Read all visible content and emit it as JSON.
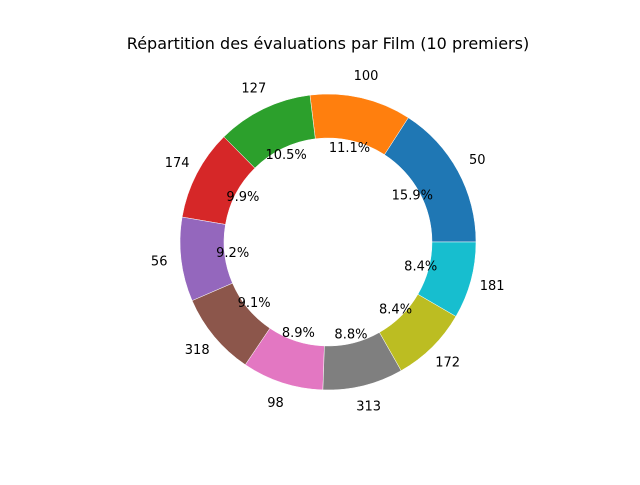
{
  "chart_data": {
    "type": "pie",
    "variant": "donut",
    "title": "Répartition des évaluations par Film (10 premiers)",
    "start_angle_deg": 0,
    "direction": "counterclockwise",
    "slices": [
      {
        "label": "50",
        "percent": 15.9,
        "pct_text": "15.9%",
        "color": "#1f77b4"
      },
      {
        "label": "100",
        "percent": 11.1,
        "pct_text": "11.1%",
        "color": "#ff7f0e"
      },
      {
        "label": "127",
        "percent": 10.5,
        "pct_text": "10.5%",
        "color": "#2ca02c"
      },
      {
        "label": "174",
        "percent": 9.9,
        "pct_text": "9.9%",
        "color": "#d62728"
      },
      {
        "label": "56",
        "percent": 9.2,
        "pct_text": "9.2%",
        "color": "#9467bd"
      },
      {
        "label": "318",
        "percent": 9.1,
        "pct_text": "9.1%",
        "color": "#8c564b"
      },
      {
        "label": "98",
        "percent": 8.9,
        "pct_text": "8.9%",
        "color": "#e377c2"
      },
      {
        "label": "313",
        "percent": 8.8,
        "pct_text": "8.8%",
        "color": "#7f7f7f"
      },
      {
        "label": "172",
        "percent": 8.4,
        "pct_text": "8.4%",
        "color": "#bcbd22"
      },
      {
        "label": "181",
        "percent": 8.4,
        "pct_text": "8.4%",
        "color": "#17becf"
      }
    ]
  }
}
